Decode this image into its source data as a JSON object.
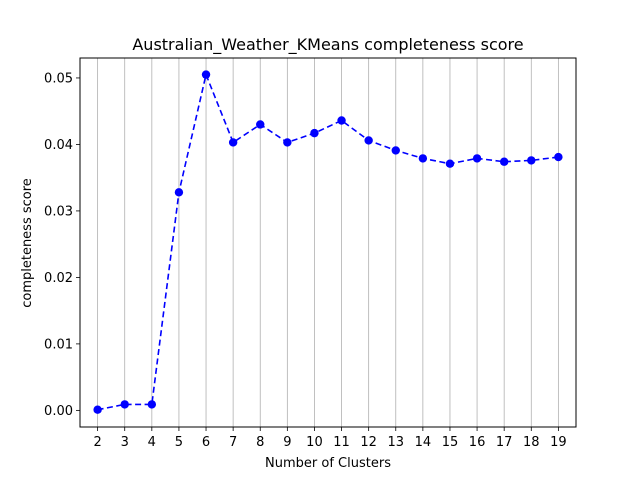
{
  "chart_data": {
    "type": "line",
    "title": "Australian_Weather_KMeans completeness score",
    "xlabel": "Number of Clusters",
    "ylabel": "completeness score",
    "x": [
      2,
      3,
      4,
      5,
      6,
      7,
      8,
      9,
      10,
      11,
      12,
      13,
      14,
      15,
      16,
      17,
      18,
      19
    ],
    "series": [
      {
        "values": [
          0.0001,
          0.0009,
          0.0009,
          0.0328,
          0.0505,
          0.0403,
          0.043,
          0.0403,
          0.0417,
          0.0436,
          0.0406,
          0.0391,
          0.0379,
          0.0371,
          0.0379,
          0.0374,
          0.0376,
          0.0381
        ],
        "color": "#0000ff",
        "line_style": "dashed",
        "marker": "circle"
      }
    ],
    "xlim": [
      1.35,
      19.65
    ],
    "ylim": [
      -0.0025,
      0.053
    ],
    "yticks": [
      0.0,
      0.01,
      0.02,
      0.03,
      0.04,
      0.05
    ],
    "ytick_labels": [
      "0.00",
      "0.01",
      "0.02",
      "0.03",
      "0.04",
      "0.05"
    ],
    "xticks": [
      2,
      3,
      4,
      5,
      6,
      7,
      8,
      9,
      10,
      11,
      12,
      13,
      14,
      15,
      16,
      17,
      18,
      19
    ],
    "grid": "vertical",
    "grid_color": "#b0b0b0",
    "legend": "none"
  }
}
